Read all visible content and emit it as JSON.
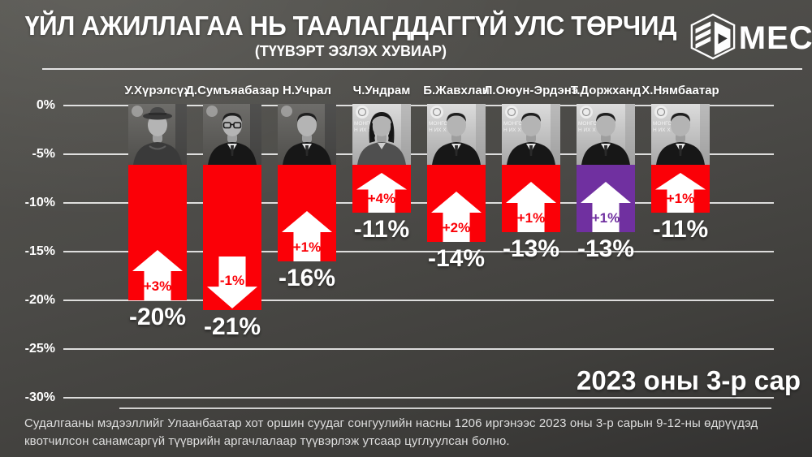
{
  "header": {
    "title": "ҮЙЛ АЖИЛЛАГАА НЬ ТААЛАГДДАГГҮЙ УЛС ТӨРЧИД",
    "subtitle": "(ТҮҮВЭРТ ЭЗЛЭХ ХУВИАР)",
    "logo_text": "MEC",
    "logo_icon": "mec-cube-icon"
  },
  "chart_data": {
    "type": "bar",
    "title": "ҮЙЛ АЖИЛЛАГАА НЬ ТААЛАГДДАГГҮЙ УЛС ТӨРЧИД",
    "subtitle": "(ТҮҮВЭРТ ЭЗЛЭХ ХУВИАР)",
    "xlabel": "",
    "ylabel": "",
    "ylim": [
      -30,
      0
    ],
    "yticks": [
      "0%",
      "-5%",
      "-10%",
      "-15%",
      "-20%",
      "-25%",
      "-30%"
    ],
    "grid": true,
    "legend": false,
    "categories": [
      "У.Хүрэлсүх",
      "Д.Сумъяабазар",
      "Н.Учрал",
      "Ч.Ундрам",
      "Б.Жавхлан",
      "Л.Оюун-Эрдэнэ",
      "Т.Доржханд",
      "Х.Нямбаатар"
    ],
    "bars": [
      {
        "name": "У.Хүрэлсүх",
        "value": -20,
        "value_label": "-20%",
        "change": 3,
        "change_label": "+3%",
        "direction": "up",
        "color": "#fb0007",
        "portrait": {
          "style": "man-hat",
          "backdrop": "dark"
        }
      },
      {
        "name": "Д.Сумъяабазар",
        "value": -21,
        "value_label": "-21%",
        "change": -1,
        "change_label": "-1%",
        "direction": "down",
        "color": "#fb0007",
        "portrait": {
          "style": "man-glasses",
          "backdrop": "dark"
        }
      },
      {
        "name": "Н.Учрал",
        "value": -16,
        "value_label": "-16%",
        "change": 1,
        "change_label": "+1%",
        "direction": "up",
        "color": "#fb0007",
        "portrait": {
          "style": "man",
          "backdrop": "dark"
        }
      },
      {
        "name": "Ч.Ундрам",
        "value": -11,
        "value_label": "-11%",
        "change": 4,
        "change_label": "+4%",
        "direction": "up",
        "color": "#fb0007",
        "portrait": {
          "style": "woman",
          "backdrop": "light"
        }
      },
      {
        "name": "Б.Жавхлан",
        "value": -14,
        "value_label": "-14%",
        "change": 2,
        "change_label": "+2%",
        "direction": "up",
        "color": "#fb0007",
        "portrait": {
          "style": "man",
          "backdrop": "light"
        }
      },
      {
        "name": "Л.Оюун-Эрдэнэ",
        "value": -13,
        "value_label": "-13%",
        "change": 1,
        "change_label": "+1%",
        "direction": "up",
        "color": "#fb0007",
        "portrait": {
          "style": "man",
          "backdrop": "light"
        }
      },
      {
        "name": "Т.Доржханд",
        "value": -13,
        "value_label": "-13%",
        "change": 1,
        "change_label": "+1%",
        "direction": "up",
        "color": "#7030a0",
        "portrait": {
          "style": "man",
          "backdrop": "light"
        }
      },
      {
        "name": "Х.Нямбаатар",
        "value": -11,
        "value_label": "-11%",
        "change": 1,
        "change_label": "+1%",
        "direction": "up",
        "color": "#fb0007",
        "portrait": {
          "style": "man",
          "backdrop": "light"
        }
      }
    ],
    "period_label": "2023 оны 3-р сар",
    "photo_backdrop_text": [
      "МОНГОЛ",
      "Н ИХ Х"
    ]
  },
  "footer": {
    "note": "Судалгааны мэдээллийг Улаанбаатар хот оршин суудаг сонгуулийн насны 1206 иргэнээс 2023 оны 3-р сарын 9-12-ны өдрүүдэд квотчилсон санамсаргүй түүврийн аргачлалаар түүвэрлэж утсаар цуглуулсан болно."
  },
  "colors": {
    "bar_red": "#fb0007",
    "bar_purple": "#7030a0",
    "background": "#4b4a47",
    "gridline": "#d9d9d9",
    "text": "#ffffff",
    "footer_text": "#dedede"
  }
}
